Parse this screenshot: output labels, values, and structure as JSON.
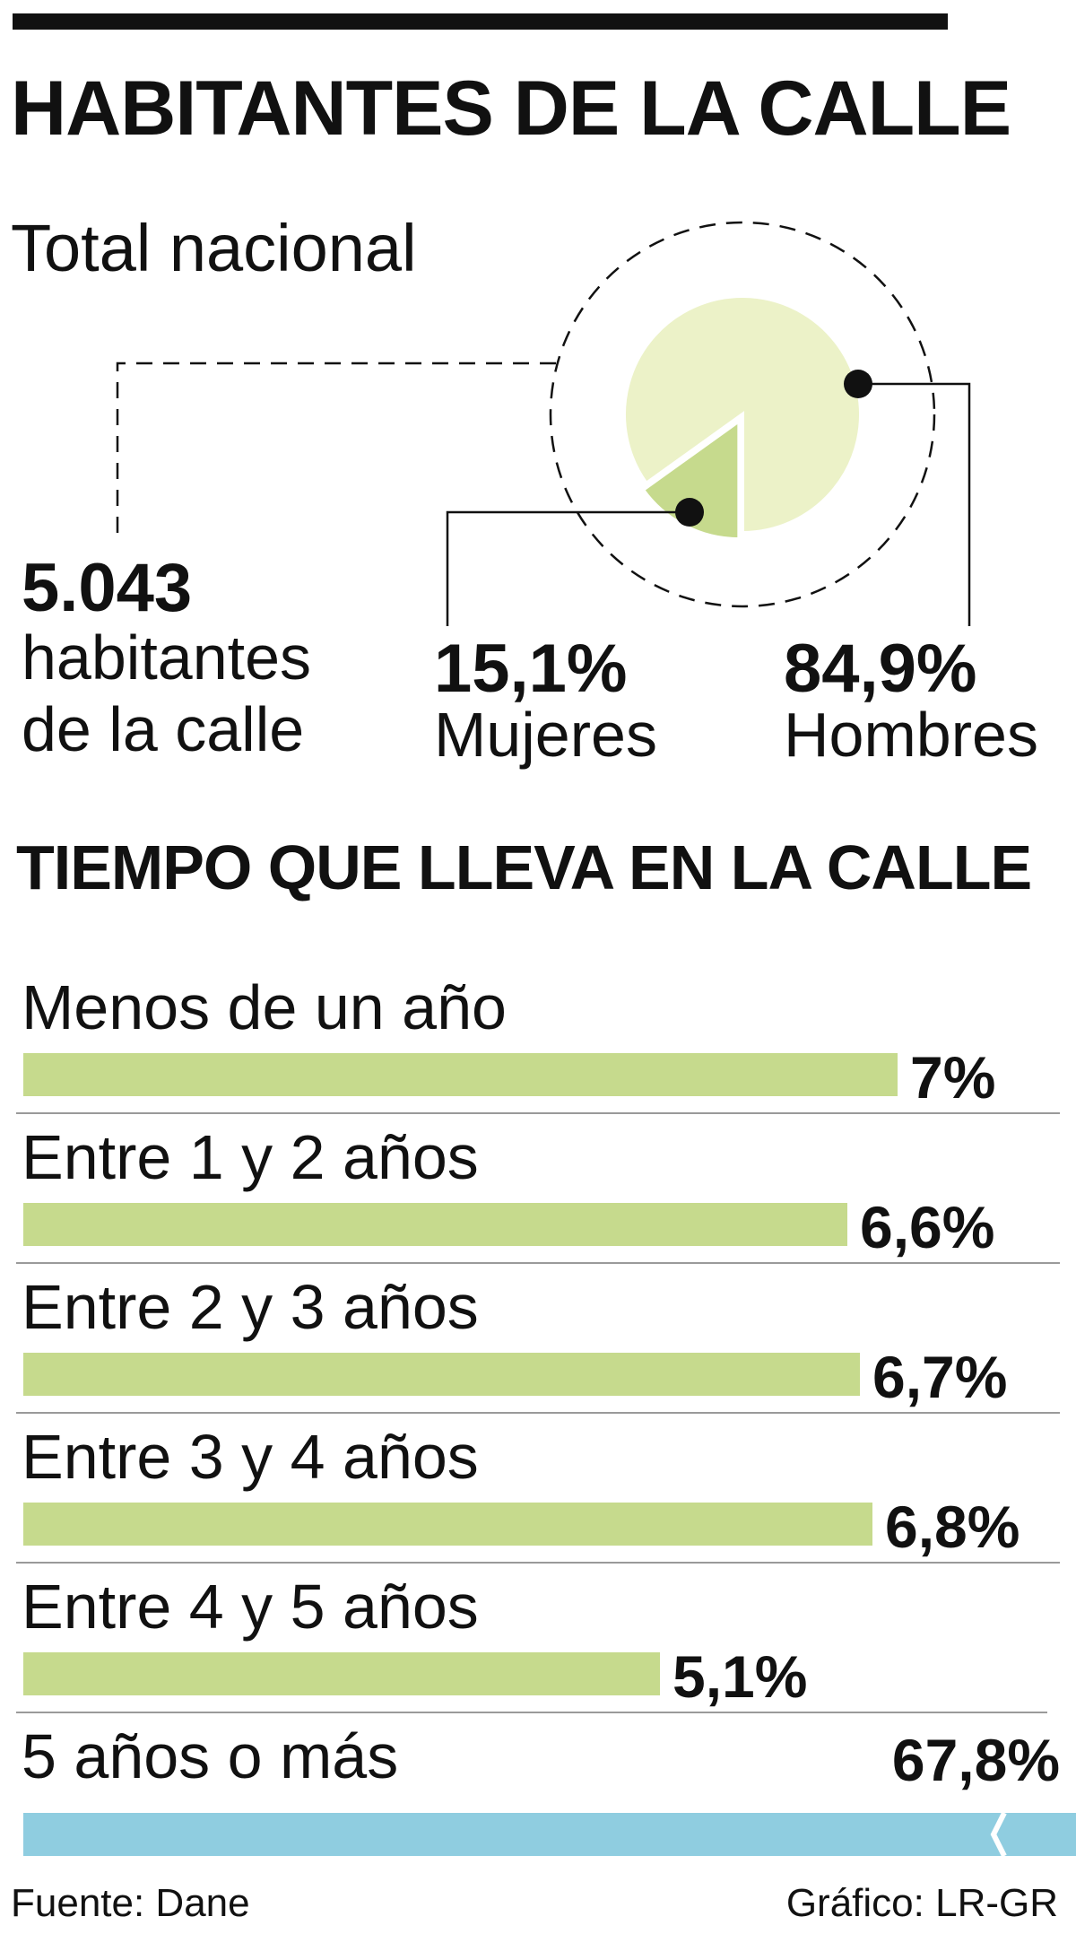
{
  "title": "HABITANTES DE LA CALLE",
  "subtitle": "Total nacional",
  "total": {
    "value": "5.043",
    "label_line1": "habitantes",
    "label_line2": "de la calle"
  },
  "pie_labels": {
    "women_value": "15,1%",
    "women_label": "Mujeres",
    "men_value": "84,9%",
    "men_label": "Hombres"
  },
  "section_title": "TIEMPO QUE LLEVA EN LA CALLE",
  "colors": {
    "men": "#ecf2c8",
    "women": "#c6da8d",
    "bar": "#c6da8d",
    "highlight_bar": "#8fcde0",
    "text": "#111111"
  },
  "footer": {
    "source": "Fuente: Dane",
    "credit": "Gráfico: LR-GR"
  },
  "chart_data": [
    {
      "type": "pie",
      "title": "Total nacional",
      "categories": [
        "Hombres",
        "Mujeres"
      ],
      "values": [
        84.9,
        15.1
      ],
      "unit": "%"
    },
    {
      "type": "bar",
      "orientation": "horizontal",
      "title": "TIEMPO QUE LLEVA EN LA CALLE",
      "categories": [
        "Menos de un año",
        "Entre 1 y 2 años",
        "Entre 2 y 3 años",
        "Entre 3 y 4 años",
        "Entre 4 y 5 años",
        "5 años o más"
      ],
      "values": [
        7,
        6.6,
        6.7,
        6.8,
        5.1,
        67.8
      ],
      "value_labels": [
        "7%",
        "6,6%",
        "6,7%",
        "6,8%",
        "5,1%",
        "67,8%"
      ],
      "unit": "%",
      "axis_break": "5 años o más",
      "grid": false
    }
  ]
}
